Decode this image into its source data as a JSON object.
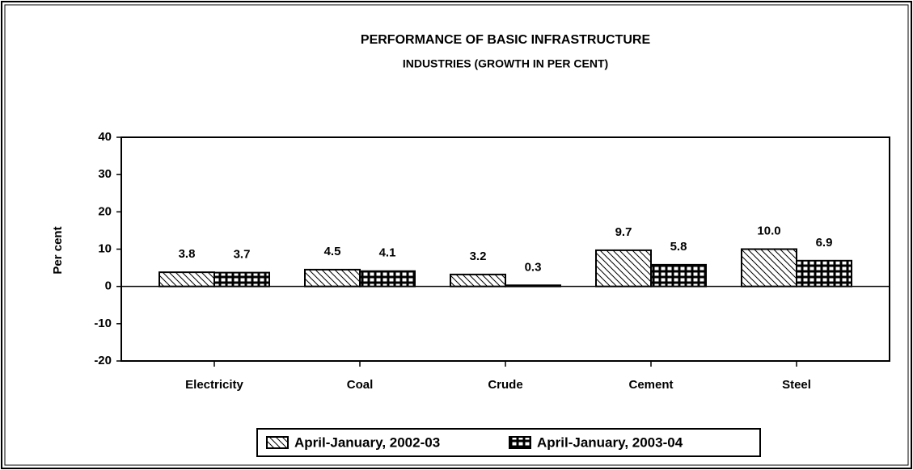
{
  "chart_data": {
    "type": "bar",
    "title": "PERFORMANCE OF BASIC INFRASTRUCTURE",
    "subtitle": "INDUSTRIES (GROWTH IN PER CENT)",
    "y_label": "Per cent",
    "categories": [
      "Electricity",
      "Coal",
      "Crude",
      "Cement",
      "Steel"
    ],
    "series": [
      {
        "name": "April-January, 2002-03",
        "color": "#000000",
        "pattern": "diagonal",
        "values": [
          3.8,
          4.5,
          3.2,
          9.7,
          10.0
        ],
        "value_labels": [
          "3.8",
          "4.5",
          "3.2",
          "9.7",
          "10.0"
        ]
      },
      {
        "name": "April-January, 2003-04",
        "color": "#000000",
        "pattern": "grid",
        "values": [
          3.7,
          4.1,
          0.3,
          5.8,
          6.9
        ],
        "value_labels": [
          "3.7",
          "4.1",
          "0.3",
          "5.8",
          "6.9"
        ]
      }
    ],
    "ylim": [
      -20,
      40
    ],
    "yticks": [
      -20,
      -10,
      0,
      10,
      20,
      30,
      40
    ],
    "grid": false,
    "legend": "bottom"
  }
}
